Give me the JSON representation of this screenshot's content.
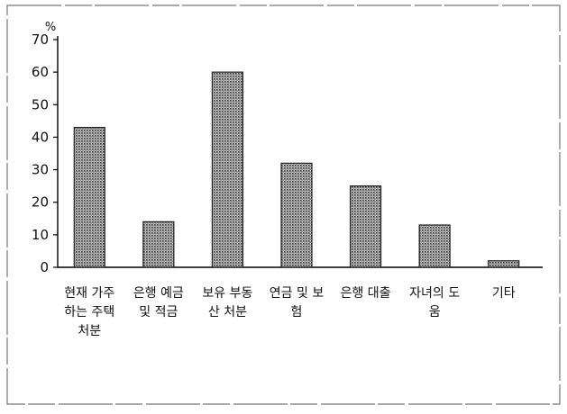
{
  "chart_data": {
    "type": "bar",
    "unit": "%",
    "categories": [
      [
        "현재 가주",
        "하는 주택",
        "처분"
      ],
      [
        "은행 예금",
        "및 적금"
      ],
      [
        "보유 부동",
        "산 처분"
      ],
      [
        "연금 및 보",
        "험"
      ],
      [
        "은행 대출"
      ],
      [
        "자녀의 도",
        "움"
      ],
      [
        "기타"
      ]
    ],
    "values": [
      43,
      14,
      60,
      32,
      25,
      13,
      2
    ],
    "ylim": [
      0,
      70
    ],
    "yticks": [
      "0",
      "10",
      "20",
      "30",
      "40",
      "50",
      "60",
      "70"
    ],
    "grid": false,
    "legend": "none",
    "bar_color": "#5a5a5a"
  }
}
